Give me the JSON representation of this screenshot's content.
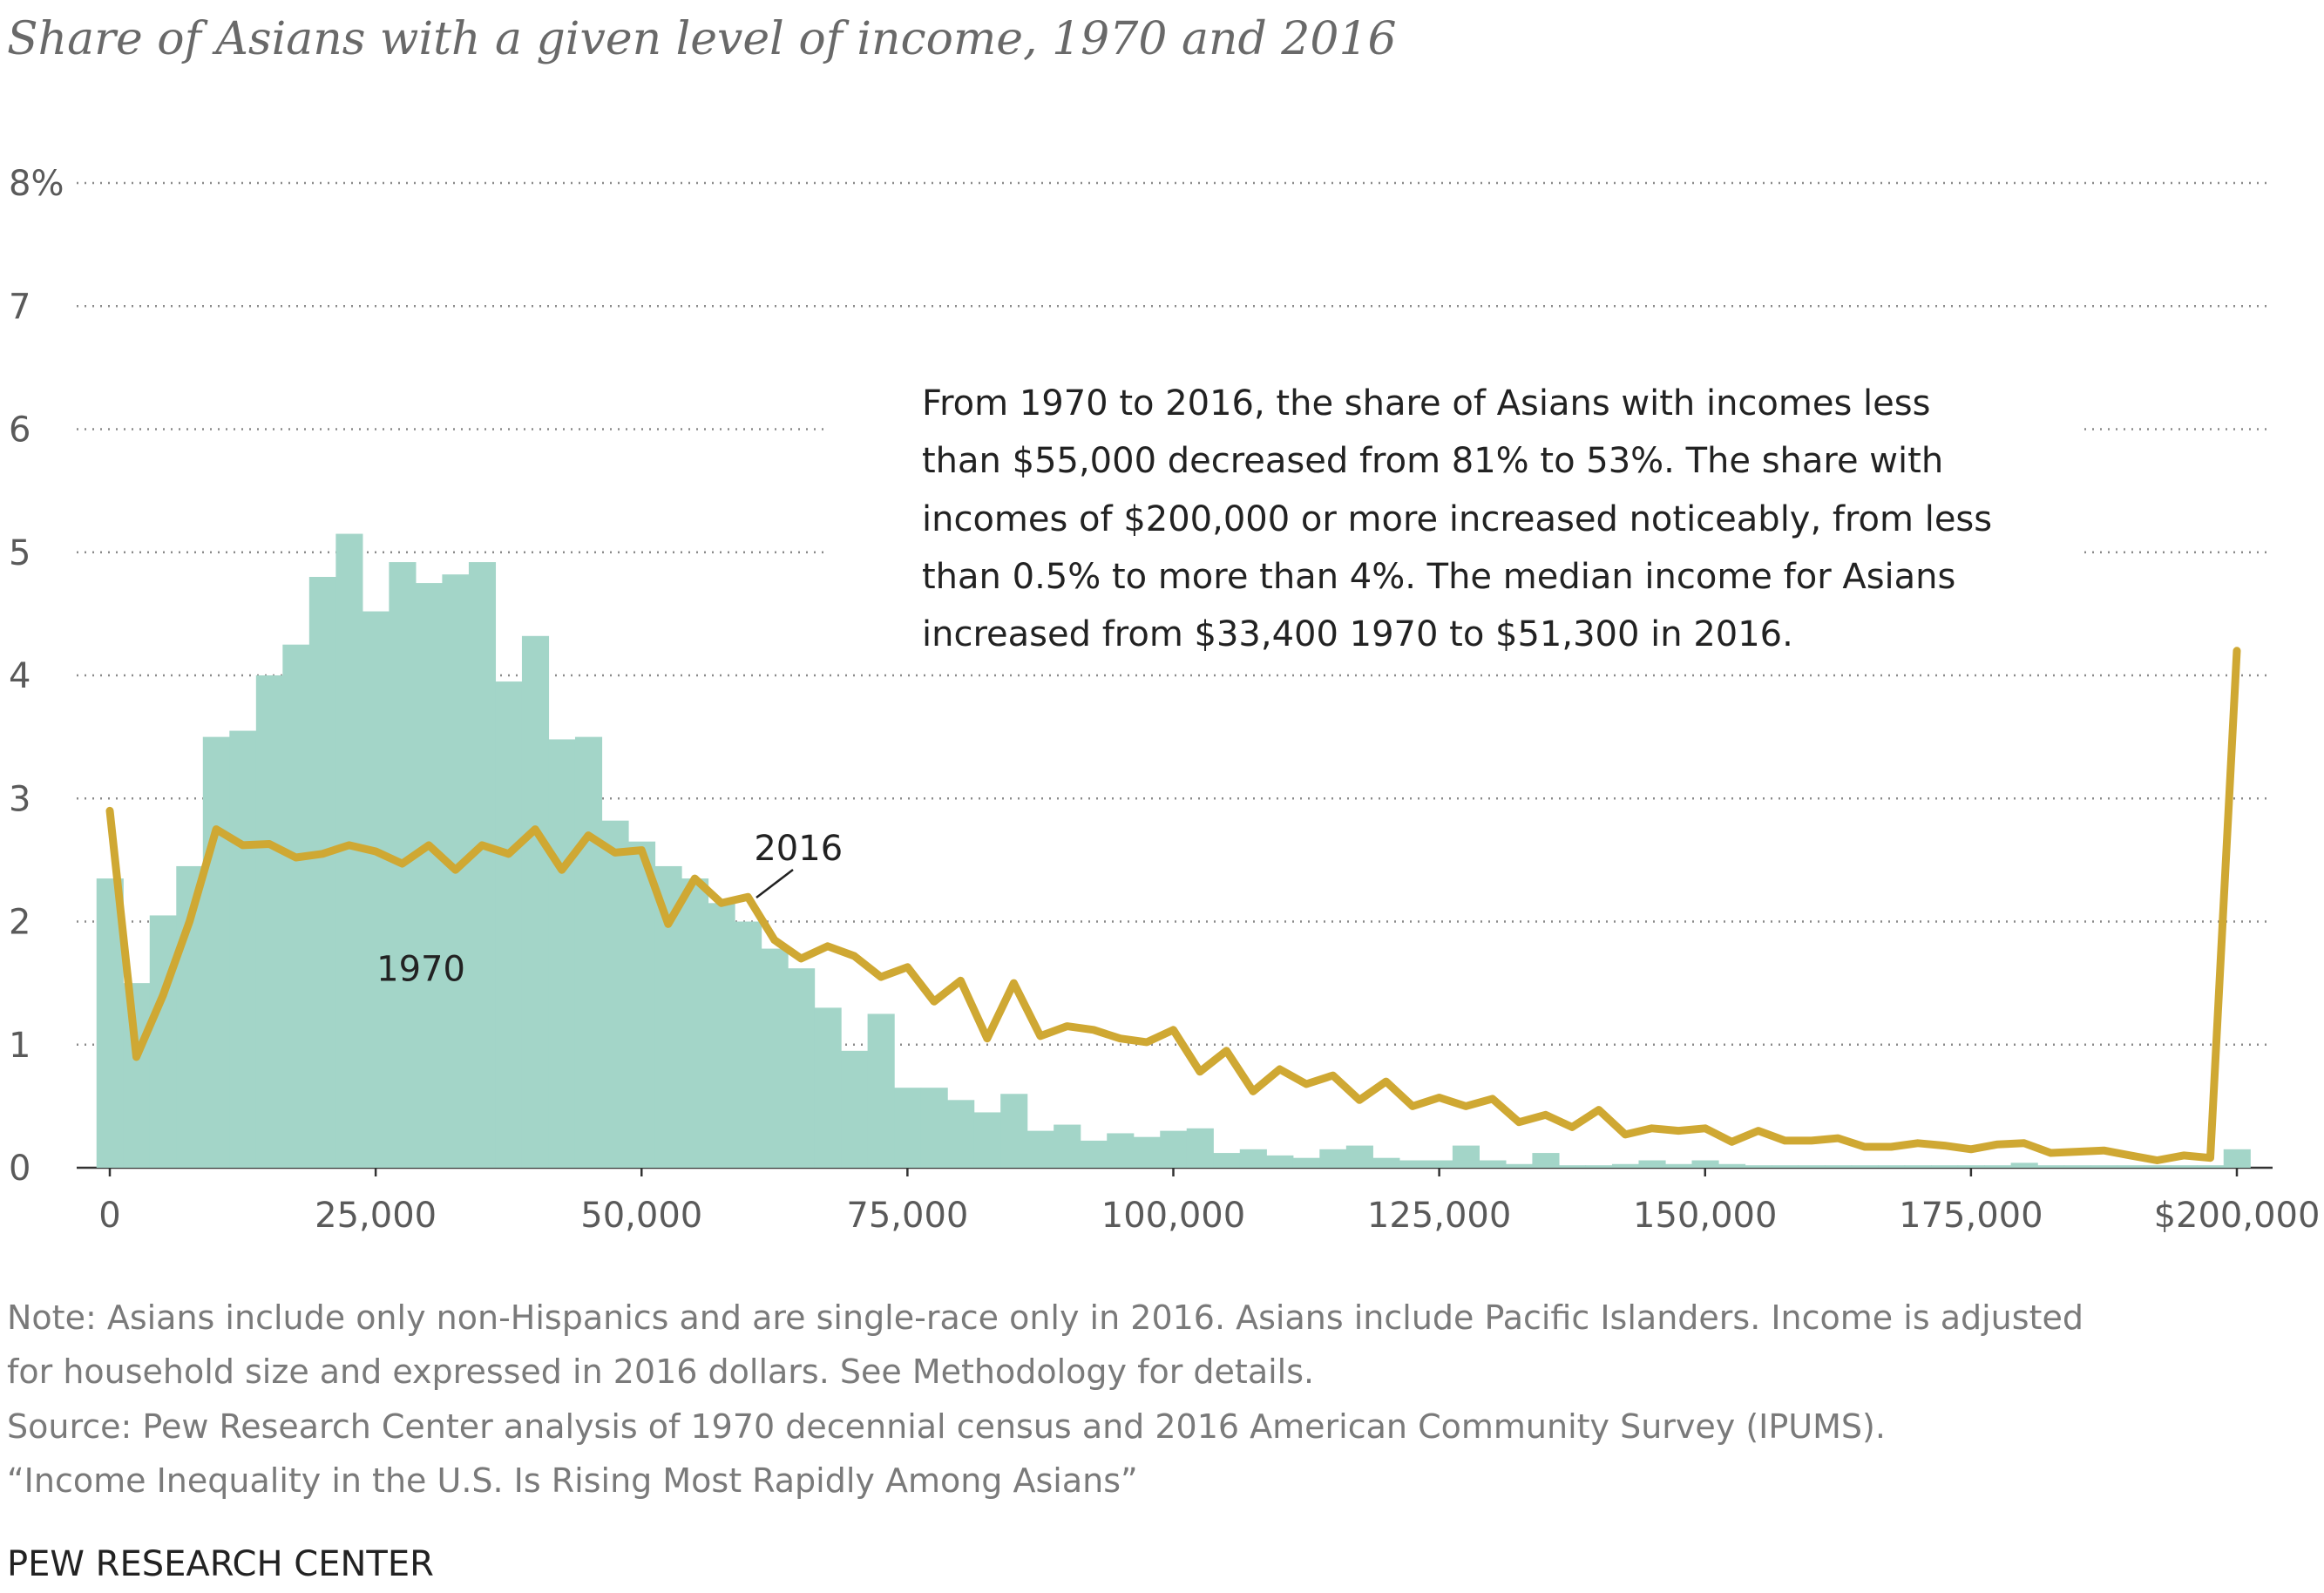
{
  "title": "Share of Asians with a given level of income, 1970 and 2016",
  "annotation": [
    "From 1970 to 2016, the share of Asians with incomes less",
    "than $55,000 decreased from 81% to 53%. The share with",
    "incomes of $200,000 or more increased noticeably, from less",
    "than 0.5% to more than 4%. The median income for Asians",
    "increased from $33,400 1970 to $51,300 in 2016."
  ],
  "notes": [
    "Note: Asians include only non-Hispanics and are single-race only in 2016. Asians include Pacific Islanders. Income is adjusted",
    "for household size and expressed in 2016 dollars. See Methodology for details.",
    "Source: Pew Research Center analysis of 1970 decennial census and 2016 American Community Survey (IPUMS).",
    "“Income Inequality in the U.S. Is Rising Most Rapidly Among Asians”"
  ],
  "brand": "PEW RESEARCH CENTER",
  "colors": {
    "bars_1970": "#a3d5c8",
    "line_2016": "#cfa833",
    "grid": "#8a8a8a"
  },
  "chart_data": {
    "type": "bar",
    "title": "Share of Asians with a given level of income, 1970 and 2016",
    "xlim": [
      0,
      200000
    ],
    "ylim": [
      0,
      8
    ],
    "grid": true,
    "yticks": [
      {
        "value": 0,
        "label": "0"
      },
      {
        "value": 1,
        "label": "1"
      },
      {
        "value": 2,
        "label": "2"
      },
      {
        "value": 3,
        "label": "3"
      },
      {
        "value": 4,
        "label": "4"
      },
      {
        "value": 5,
        "label": "5"
      },
      {
        "value": 6,
        "label": "6"
      },
      {
        "value": 7,
        "label": "7"
      },
      {
        "value": 8,
        "label": "8%"
      }
    ],
    "xticks": [
      {
        "value": 0,
        "label": "0"
      },
      {
        "value": 25000,
        "label": "25,000"
      },
      {
        "value": 50000,
        "label": "50,000"
      },
      {
        "value": 75000,
        "label": "75,000"
      },
      {
        "value": 100000,
        "label": "100,000"
      },
      {
        "value": 125000,
        "label": "125,000"
      },
      {
        "value": 150000,
        "label": "150,000"
      },
      {
        "value": 175000,
        "label": "175,000"
      },
      {
        "value": 200000,
        "label": "$200,000"
      }
    ],
    "series": [
      {
        "name": "1970",
        "type": "bar",
        "bin_width": 2500,
        "x": [
          0,
          2500,
          5000,
          7500,
          10000,
          12500,
          15000,
          17500,
          20000,
          22500,
          25000,
          27500,
          30000,
          32500,
          35000,
          37500,
          40000,
          42500,
          45000,
          47500,
          50000,
          52500,
          55000,
          57500,
          60000,
          62500,
          65000,
          67500,
          70000,
          72500,
          75000,
          77500,
          80000,
          82500,
          85000,
          87500,
          90000,
          92500,
          95000,
          97500,
          100000,
          102500,
          105000,
          107500,
          110000,
          112500,
          115000,
          117500,
          120000,
          122500,
          125000,
          127500,
          130000,
          132500,
          135000,
          137500,
          140000,
          142500,
          145000,
          147500,
          150000,
          152500,
          155000,
          157500,
          160000,
          162500,
          165000,
          167500,
          170000,
          172500,
          175000,
          177500,
          180000,
          182500,
          185000,
          187500,
          190000,
          192500,
          195000,
          197500,
          200000
        ],
        "values": [
          2.35,
          1.5,
          2.05,
          2.45,
          3.5,
          3.55,
          4.0,
          4.25,
          4.8,
          5.15,
          4.52,
          4.92,
          4.75,
          4.82,
          4.92,
          3.95,
          4.32,
          3.48,
          3.5,
          2.82,
          2.65,
          2.45,
          2.35,
          2.15,
          2.0,
          1.78,
          1.62,
          1.3,
          0.95,
          1.25,
          0.65,
          0.65,
          0.55,
          0.45,
          0.6,
          0.3,
          0.35,
          0.22,
          0.28,
          0.25,
          0.3,
          0.32,
          0.12,
          0.15,
          0.1,
          0.08,
          0.15,
          0.18,
          0.08,
          0.06,
          0.06,
          0.18,
          0.06,
          0.03,
          0.12,
          0.02,
          0.02,
          0.03,
          0.06,
          0.03,
          0.06,
          0.03,
          0.02,
          0.02,
          0.02,
          0.02,
          0.02,
          0.02,
          0.02,
          0.02,
          0.02,
          0.02,
          0.04,
          0.02,
          0.02,
          0.02,
          0.02,
          0.02,
          0.02,
          0.02,
          0.15
        ]
      },
      {
        "name": "2016",
        "type": "line",
        "x": [
          0,
          2500,
          5000,
          7500,
          10000,
          12500,
          15000,
          17500,
          20000,
          22500,
          25000,
          27500,
          30000,
          32500,
          35000,
          37500,
          40000,
          42500,
          45000,
          47500,
          50000,
          52500,
          55000,
          57500,
          60000,
          62500,
          65000,
          67500,
          70000,
          72500,
          75000,
          77500,
          80000,
          82500,
          85000,
          87500,
          90000,
          92500,
          95000,
          97500,
          100000,
          102500,
          105000,
          107500,
          110000,
          112500,
          115000,
          117500,
          120000,
          122500,
          125000,
          127500,
          130000,
          132500,
          135000,
          137500,
          140000,
          142500,
          145000,
          147500,
          150000,
          152500,
          155000,
          157500,
          160000,
          162500,
          165000,
          167500,
          170000,
          172500,
          175000,
          177500,
          180000,
          182500,
          185000,
          187500,
          190000,
          192500,
          195000,
          197500,
          200000
        ],
        "values": [
          2.9,
          0.9,
          1.4,
          2.0,
          2.75,
          2.62,
          2.63,
          2.52,
          2.55,
          2.62,
          2.57,
          2.47,
          2.62,
          2.42,
          2.62,
          2.55,
          2.75,
          2.42,
          2.7,
          2.56,
          2.58,
          1.98,
          2.35,
          2.15,
          2.2,
          1.85,
          1.7,
          1.8,
          1.72,
          1.55,
          1.63,
          1.35,
          1.52,
          1.05,
          1.5,
          1.07,
          1.15,
          1.12,
          1.05,
          1.02,
          1.12,
          0.78,
          0.95,
          0.62,
          0.8,
          0.68,
          0.75,
          0.55,
          0.7,
          0.5,
          0.57,
          0.5,
          0.56,
          0.37,
          0.43,
          0.33,
          0.47,
          0.27,
          0.32,
          0.3,
          0.32,
          0.21,
          0.3,
          0.22,
          0.22,
          0.24,
          0.17,
          0.17,
          0.2,
          0.18,
          0.15,
          0.19,
          0.2,
          0.12,
          0.13,
          0.14,
          0.1,
          0.06,
          0.1,
          0.08,
          4.2
        ]
      }
    ],
    "series_labels": [
      {
        "text": "1970",
        "x": 30000,
        "y": 1.52
      },
      {
        "text": "2016",
        "x": 70000,
        "y": 2.55
      }
    ]
  }
}
